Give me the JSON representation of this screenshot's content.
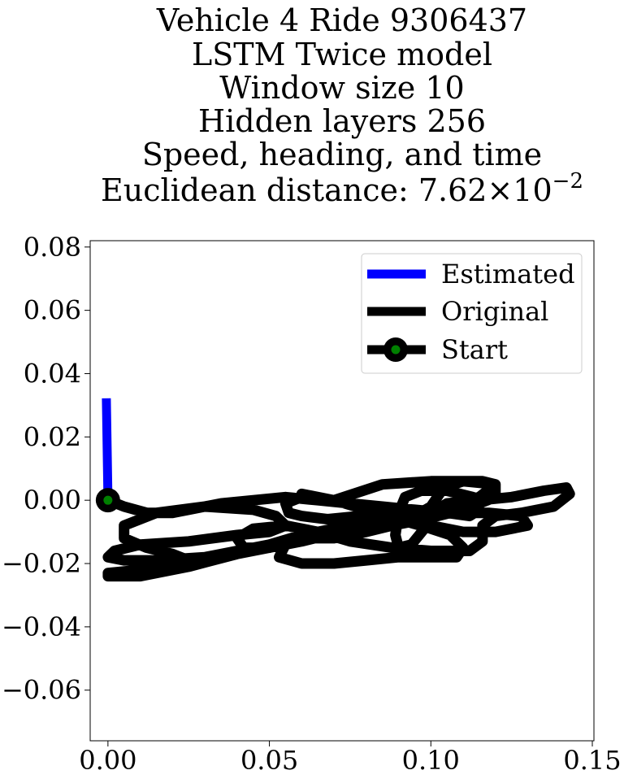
{
  "chart_data": {
    "type": "line",
    "title_lines": [
      "Vehicle 4 Ride 9306437",
      "LSTM Twice model",
      "Window size 10",
      "Hidden layers 256",
      "Speed, heading, and time",
      "Euclidean distance: 7.62×10⁻²"
    ],
    "distance_mantissa": "Euclidean distance: 7.62",
    "distance_times_ten": "×10",
    "distance_exponent": "−2",
    "xlabel": "",
    "ylabel": "",
    "xlim": [
      -0.0055,
      0.1505
    ],
    "ylim": [
      -0.076,
      0.082
    ],
    "x_ticks": [
      {
        "value": 0.0,
        "label": "0.00"
      },
      {
        "value": 0.05,
        "label": "0.05"
      },
      {
        "value": 0.1,
        "label": "0.10"
      },
      {
        "value": 0.15,
        "label": "0.15"
      }
    ],
    "y_ticks": [
      {
        "value": 0.08,
        "label": "0.08"
      },
      {
        "value": 0.06,
        "label": "0.06"
      },
      {
        "value": 0.04,
        "label": "0.04"
      },
      {
        "value": 0.02,
        "label": "0.02"
      },
      {
        "value": 0.0,
        "label": "0.00"
      },
      {
        "value": -0.02,
        "label": "−0.02"
      },
      {
        "value": -0.04,
        "label": "−0.04"
      },
      {
        "value": -0.06,
        "label": "−0.06"
      }
    ],
    "grid": false,
    "legend_position": "top-right",
    "series": [
      {
        "name": "Estimated",
        "color": "#0000ff",
        "points": [
          [
            0.0,
            0.0
          ],
          [
            -0.0005,
            0.0322
          ]
        ]
      },
      {
        "name": "Original",
        "color": "#000000",
        "points": [
          [
            0.0,
            0.0
          ],
          [
            0.005,
            -0.002
          ],
          [
            0.012,
            -0.004
          ],
          [
            0.02,
            -0.004
          ],
          [
            0.025,
            -0.003
          ],
          [
            0.035,
            -0.001
          ],
          [
            0.045,
            0.0
          ],
          [
            0.055,
            0.001
          ],
          [
            0.065,
            0.0
          ],
          [
            0.075,
            -0.001
          ],
          [
            0.085,
            -0.002
          ],
          [
            0.095,
            -0.003
          ],
          [
            0.105,
            -0.004
          ],
          [
            0.112,
            -0.005
          ],
          [
            0.115,
            -0.003
          ],
          [
            0.113,
            0.001
          ],
          [
            0.105,
            0.003
          ],
          [
            0.097,
            0.003
          ],
          [
            0.092,
            0.001
          ],
          [
            0.09,
            -0.004
          ],
          [
            0.089,
            -0.011
          ],
          [
            0.09,
            -0.015
          ],
          [
            0.094,
            -0.014
          ],
          [
            0.098,
            -0.009
          ],
          [
            0.1,
            -0.004
          ],
          [
            0.105,
            -0.001
          ],
          [
            0.115,
            0.0
          ],
          [
            0.125,
            0.001
          ],
          [
            0.135,
            0.003
          ],
          [
            0.142,
            0.004
          ],
          [
            0.143,
            0.002
          ],
          [
            0.138,
            -0.002
          ],
          [
            0.128,
            -0.004
          ],
          [
            0.12,
            -0.005
          ],
          [
            0.116,
            -0.008
          ],
          [
            0.116,
            -0.013
          ],
          [
            0.112,
            -0.016
          ],
          [
            0.1,
            -0.016
          ],
          [
            0.088,
            -0.015
          ],
          [
            0.075,
            -0.013
          ],
          [
            0.065,
            -0.01
          ],
          [
            0.055,
            -0.008
          ],
          [
            0.045,
            -0.009
          ],
          [
            0.04,
            -0.012
          ],
          [
            0.042,
            -0.015
          ],
          [
            0.05,
            -0.015
          ],
          [
            0.058,
            -0.012
          ],
          [
            0.065,
            -0.011
          ],
          [
            0.075,
            -0.01
          ],
          [
            0.085,
            -0.008
          ],
          [
            0.095,
            -0.005
          ],
          [
            0.1,
            -0.002
          ],
          [
            0.104,
            0.004
          ],
          [
            0.11,
            0.006
          ],
          [
            0.12,
            0.005
          ],
          [
            0.12,
            0.001
          ],
          [
            0.11,
            -0.003
          ],
          [
            0.098,
            -0.006
          ],
          [
            0.088,
            -0.008
          ],
          [
            0.08,
            -0.01
          ],
          [
            0.07,
            -0.012
          ],
          [
            0.06,
            -0.012
          ],
          [
            0.055,
            -0.014
          ],
          [
            0.053,
            -0.018
          ],
          [
            0.06,
            -0.02
          ],
          [
            0.07,
            -0.02
          ],
          [
            0.08,
            -0.019
          ],
          [
            0.09,
            -0.018
          ],
          [
            0.1,
            -0.018
          ],
          [
            0.108,
            -0.018
          ],
          [
            0.11,
            -0.015
          ],
          [
            0.106,
            -0.011
          ],
          [
            0.1,
            -0.009
          ],
          [
            0.09,
            -0.006
          ],
          [
            0.08,
            -0.003
          ],
          [
            0.07,
            0.0
          ],
          [
            0.06,
            0.001
          ],
          [
            0.055,
            -0.001
          ],
          [
            0.056,
            -0.004
          ],
          [
            0.06,
            -0.005
          ],
          [
            0.068,
            -0.006
          ],
          [
            0.078,
            -0.005
          ],
          [
            0.088,
            -0.005
          ],
          [
            0.095,
            -0.006
          ],
          [
            0.1,
            -0.008
          ],
          [
            0.11,
            -0.01
          ],
          [
            0.12,
            -0.01
          ],
          [
            0.13,
            -0.008
          ],
          [
            0.128,
            -0.005
          ],
          [
            0.118,
            -0.004
          ],
          [
            0.105,
            -0.004
          ],
          [
            0.09,
            -0.005
          ],
          [
            0.075,
            -0.008
          ],
          [
            0.06,
            -0.011
          ],
          [
            0.05,
            -0.014
          ],
          [
            0.04,
            -0.016
          ],
          [
            0.03,
            -0.018
          ],
          [
            0.015,
            -0.019
          ],
          [
            0.005,
            -0.019
          ],
          [
            0.0,
            -0.018
          ],
          [
            0.002,
            -0.016
          ],
          [
            0.01,
            -0.014
          ],
          [
            0.025,
            -0.013
          ],
          [
            0.04,
            -0.011
          ],
          [
            0.05,
            -0.01
          ],
          [
            0.055,
            -0.008
          ],
          [
            0.052,
            -0.005
          ],
          [
            0.045,
            -0.003
          ],
          [
            0.03,
            -0.002
          ],
          [
            0.015,
            -0.004
          ],
          [
            0.005,
            -0.008
          ],
          [
            0.005,
            -0.012
          ],
          [
            0.012,
            -0.015
          ],
          [
            0.02,
            -0.017
          ],
          [
            0.025,
            -0.019
          ],
          [
            0.02,
            -0.021
          ],
          [
            0.01,
            -0.022
          ],
          [
            0.0,
            -0.023
          ],
          [
            0.0,
            -0.024
          ],
          [
            0.01,
            -0.024
          ],
          [
            0.025,
            -0.021
          ],
          [
            0.04,
            -0.017
          ],
          [
            0.06,
            -0.013
          ],
          [
            0.08,
            -0.008
          ],
          [
            0.1,
            -0.003
          ],
          [
            0.115,
            0.001
          ],
          [
            0.12,
            0.005
          ],
          [
            0.116,
            0.006
          ],
          [
            0.1,
            0.006
          ],
          [
            0.085,
            0.005
          ],
          [
            0.07,
            0.0
          ],
          [
            0.06,
            0.002
          ]
        ]
      }
    ],
    "start_point": {
      "name": "Start",
      "x": 0.0,
      "y": 0.0,
      "color": "#008000"
    }
  }
}
